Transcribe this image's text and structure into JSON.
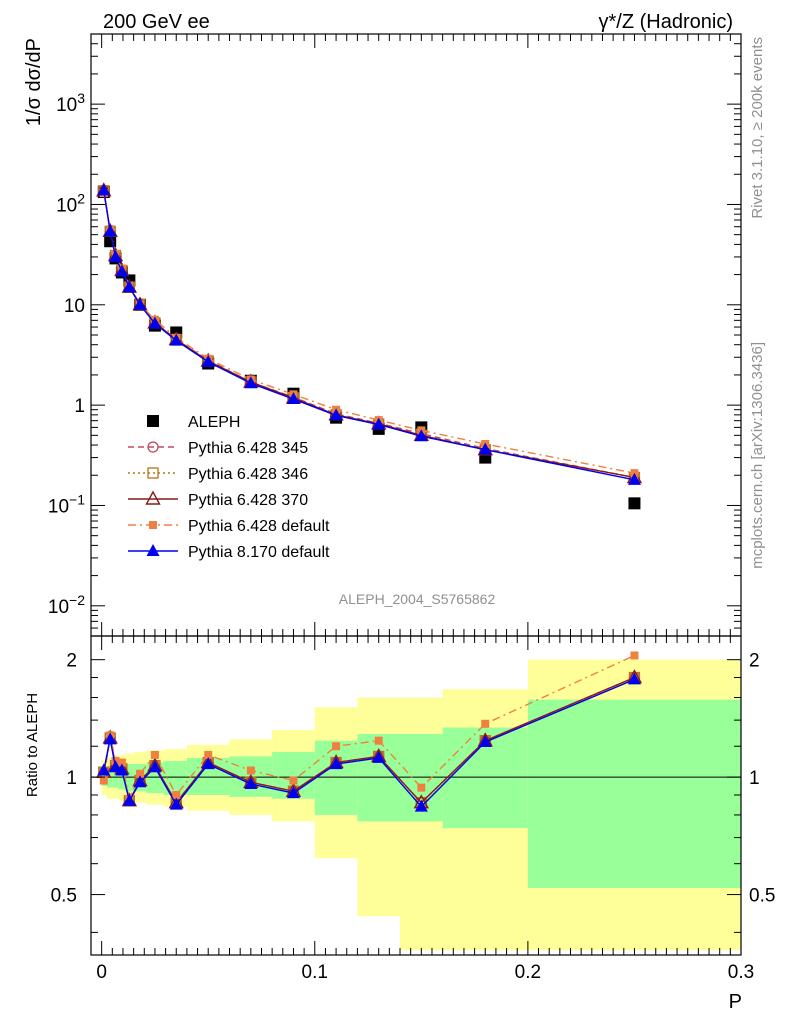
{
  "chart_data": [
    {
      "type": "scatter",
      "panel": "main",
      "title_left": "200 GeV ee",
      "title_right": "γ*/Z (Hadronic)",
      "ylabel": "1/σ  dσ/dP",
      "xlabel": "",
      "xlim": [
        -0.005,
        0.3
      ],
      "ylim": [
        0.005,
        5000
      ],
      "y_scale": "log",
      "y_tick_labels": [
        "10^-2",
        "10^-1",
        "1",
        "10",
        "10^2",
        "10^3"
      ],
      "x": [
        0.001,
        0.004,
        0.0065,
        0.0095,
        0.013,
        0.018,
        0.025,
        0.035,
        0.05,
        0.07,
        0.09,
        0.11,
        0.13,
        0.15,
        0.18,
        0.25
      ],
      "series": [
        {
          "name": "ALEPH",
          "marker": "square",
          "color": "#000000",
          "line": "none",
          "values": [
            133,
            43,
            29,
            21,
            17.5,
            10,
            6.2,
            5.3,
            2.6,
            1.75,
            1.3,
            0.75,
            0.58,
            0.6,
            0.3,
            0.105
          ]
        },
        {
          "name": "Pythia 6.428 345",
          "marker": "open-circle",
          "color": "#c0485e",
          "line": "dashed",
          "values": [
            138,
            55,
            31,
            22,
            15,
            10.2,
            6.7,
            4.5,
            2.8,
            1.7,
            1.2,
            0.82,
            0.66,
            0.52,
            0.37,
            0.19
          ]
        },
        {
          "name": "Pythia 6.428 346",
          "marker": "open-square",
          "color": "#b8741a",
          "line": "dotted",
          "values": [
            137,
            54,
            31,
            22,
            15,
            10.1,
            6.6,
            4.5,
            2.75,
            1.7,
            1.18,
            0.8,
            0.65,
            0.5,
            0.36,
            0.19
          ]
        },
        {
          "name": "Pythia 6.428 370",
          "marker": "open-triangle",
          "color": "#8b1a1a",
          "line": "solid",
          "values": [
            137,
            54,
            31,
            22,
            15,
            10,
            6.6,
            4.5,
            2.75,
            1.7,
            1.18,
            0.8,
            0.65,
            0.5,
            0.36,
            0.19
          ]
        },
        {
          "name": "Pythia 6.428 default",
          "marker": "small-square",
          "color": "#f08040",
          "line": "dashdot",
          "values": [
            130,
            55,
            32,
            23,
            15.5,
            10.1,
            7.1,
            4.7,
            2.9,
            1.8,
            1.28,
            0.9,
            0.71,
            0.56,
            0.41,
            0.21
          ]
        },
        {
          "name": "Pythia 8.170 default",
          "marker": "filled-triangle",
          "color": "#0000ee",
          "line": "solid",
          "values": [
            138,
            54,
            30,
            21.5,
            15,
            10,
            6.5,
            4.4,
            2.7,
            1.65,
            1.15,
            0.79,
            0.64,
            0.49,
            0.36,
            0.18
          ]
        }
      ],
      "legend_position": "bottom-left",
      "annotation": "ALEPH_2004_S5765862"
    },
    {
      "type": "line",
      "panel": "ratio",
      "ylabel": "Ratio to ALEPH",
      "xlabel": "P",
      "xlim": [
        -0.005,
        0.3
      ],
      "ylim": [
        0.35,
        2.3
      ],
      "y_scale": "log",
      "y_tick_labels": [
        "0.5",
        "1",
        "2"
      ],
      "x_tick_labels": [
        "0",
        "0.1",
        "0.2",
        "0.3"
      ],
      "bands": {
        "bin_edges": [
          0.0,
          0.0025,
          0.005,
          0.008,
          0.011,
          0.015,
          0.021,
          0.029,
          0.04,
          0.06,
          0.08,
          0.1,
          0.12,
          0.14,
          0.16,
          0.2,
          0.3
        ],
        "green_lo": [
          0.95,
          0.94,
          0.94,
          0.93,
          0.92,
          0.92,
          0.91,
          0.9,
          0.9,
          0.89,
          0.88,
          0.8,
          0.77,
          0.77,
          0.74,
          0.52
        ],
        "green_hi": [
          1.05,
          1.06,
          1.06,
          1.07,
          1.08,
          1.08,
          1.09,
          1.1,
          1.12,
          1.13,
          1.16,
          1.24,
          1.29,
          1.29,
          1.34,
          1.58
        ],
        "yellow_lo": [
          0.9,
          0.88,
          0.88,
          0.87,
          0.86,
          0.86,
          0.85,
          0.84,
          0.82,
          0.8,
          0.77,
          0.62,
          0.44,
          0.36,
          0.36,
          0.36
        ],
        "yellow_hi": [
          1.1,
          1.12,
          1.13,
          1.14,
          1.15,
          1.16,
          1.17,
          1.18,
          1.21,
          1.25,
          1.32,
          1.51,
          1.6,
          1.6,
          1.68,
          2.0
        ],
        "green_color": "#99ff99",
        "yellow_color": "#ffff99"
      },
      "x": [
        0.001,
        0.004,
        0.0065,
        0.0095,
        0.013,
        0.018,
        0.025,
        0.035,
        0.05,
        0.07,
        0.09,
        0.11,
        0.13,
        0.15,
        0.18,
        0.25
      ],
      "series": [
        {
          "name": "Pythia 6.428 345",
          "color": "#c0485e",
          "marker": "open-circle",
          "values": [
            1.03,
            1.27,
            1.07,
            1.05,
            0.87,
            0.98,
            1.07,
            0.86,
            1.09,
            0.97,
            0.92,
            1.09,
            1.13,
            0.86,
            1.24,
            1.8
          ]
        },
        {
          "name": "Pythia 6.428 346",
          "color": "#b8741a",
          "marker": "open-square",
          "values": [
            1.03,
            1.26,
            1.07,
            1.05,
            0.87,
            0.98,
            1.07,
            0.86,
            1.09,
            0.97,
            0.92,
            1.09,
            1.13,
            0.86,
            1.24,
            1.8
          ]
        },
        {
          "name": "Pythia 6.428 370",
          "color": "#8b1a1a",
          "marker": "open-triangle",
          "values": [
            1.03,
            1.26,
            1.07,
            1.05,
            0.87,
            0.98,
            1.07,
            0.86,
            1.09,
            0.97,
            0.92,
            1.09,
            1.13,
            0.86,
            1.24,
            1.8
          ]
        },
        {
          "name": "Pythia 6.428 default",
          "color": "#f08040",
          "marker": "small-square",
          "values": [
            0.98,
            1.28,
            1.1,
            1.09,
            0.88,
            1.02,
            1.14,
            0.9,
            1.14,
            1.04,
            0.98,
            1.2,
            1.24,
            0.94,
            1.37,
            2.05
          ]
        },
        {
          "name": "Pythia 8.170 default",
          "color": "#0000ee",
          "marker": "filled-triangle",
          "values": [
            1.04,
            1.25,
            1.06,
            1.04,
            0.87,
            0.97,
            1.06,
            0.85,
            1.08,
            0.96,
            0.91,
            1.08,
            1.12,
            0.84,
            1.23,
            1.78
          ]
        }
      ]
    }
  ],
  "side_labels": {
    "rivet": "Rivet 3.1.10, ≥ 200k events",
    "mcplots": "mcplots.cern.ch [arXiv:1306.3436]"
  }
}
